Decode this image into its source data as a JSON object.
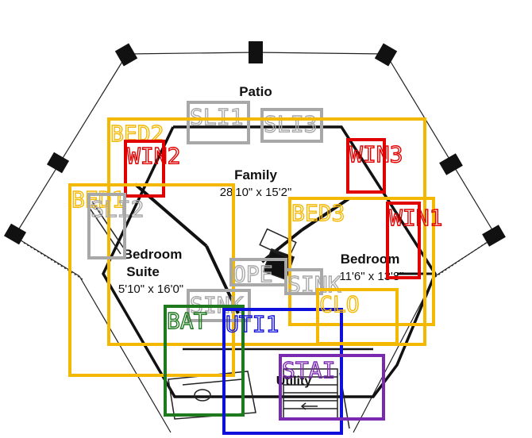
{
  "rooms": {
    "patio": {
      "name": "Patio"
    },
    "family": {
      "name": "Family",
      "dims": "28'10\" x 15'2\""
    },
    "bedroom_suite": {
      "name_line1": "Bedroom",
      "name_line2": "Suite",
      "dims": "5'10\" x 16'0\""
    },
    "bedroom": {
      "name": "Bedroom",
      "dims": "11'6\" x 13'8\""
    },
    "utility": {
      "name": "Utility"
    }
  },
  "annotations": {
    "colors": {
      "bed": "#f5b800",
      "win": "#e00000",
      "sli": "#a8a8a8",
      "uti": "#1010dd",
      "bat": "#1f7a1f",
      "sta": "#7a2ab0"
    },
    "boxes": [
      {
        "id": "sli1",
        "label": "SLI1",
        "kind": "sli"
      },
      {
        "id": "sli3",
        "label": "SLI3",
        "kind": "sli"
      },
      {
        "id": "bed2",
        "label": "BED2",
        "kind": "bed"
      },
      {
        "id": "win2",
        "label": "WIN2",
        "kind": "win"
      },
      {
        "id": "win3",
        "label": "WIN3",
        "kind": "win"
      },
      {
        "id": "bed1",
        "label": "BED1",
        "kind": "bed"
      },
      {
        "id": "sli2",
        "label": "SLI2",
        "kind": "sli"
      },
      {
        "id": "bed3",
        "label": "BED3",
        "kind": "bed"
      },
      {
        "id": "win1",
        "label": "WIN1",
        "kind": "win"
      },
      {
        "id": "ope",
        "label": "OPE",
        "kind": "sli"
      },
      {
        "id": "sink1",
        "label": "SINK",
        "kind": "sli"
      },
      {
        "id": "sink2",
        "label": "SINK",
        "kind": "sli"
      },
      {
        "id": "bat",
        "label": "BAT",
        "kind": "bat"
      },
      {
        "id": "uti",
        "label": "UTI1",
        "kind": "uti"
      },
      {
        "id": "clo",
        "label": "CLO",
        "kind": "bed"
      },
      {
        "id": "sta",
        "label": "STAI",
        "kind": "sta"
      }
    ]
  }
}
